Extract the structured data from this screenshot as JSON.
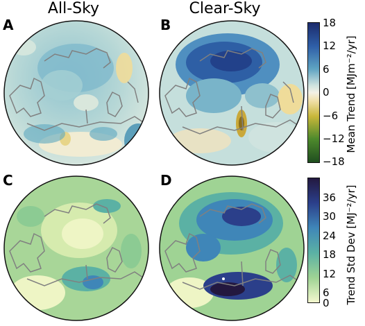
{
  "columns": {
    "left_title": "All-Sky",
    "right_title": "Clear-Sky"
  },
  "panels": [
    {
      "letter": "A",
      "row": "top",
      "column": "left"
    },
    {
      "letter": "B",
      "row": "top",
      "column": "right"
    },
    {
      "letter": "C",
      "row": "bottom",
      "column": "left"
    },
    {
      "letter": "D",
      "row": "bottom",
      "column": "right"
    }
  ],
  "colorbars": {
    "mean_trend": {
      "label": "Mean Trend [MJm⁻²/yr]",
      "ticks": [
        "18",
        "12",
        "6",
        "0",
        "−6",
        "−12",
        "−18"
      ],
      "range": [
        -18,
        18
      ],
      "colors": {
        "max": "#1b2a6b",
        "high": "#2f5fa8",
        "mid_high": "#5ea3c2",
        "near_zero_pos": "#cfe3df",
        "zero": "#f3f1e6",
        "near_zero_neg": "#f0e0a8",
        "mid_low": "#c8b73a",
        "low": "#4e8a2c",
        "min": "#1f4d1f"
      }
    },
    "std_dev": {
      "label": "Trend Std Dev [MJ⁻²/yr]",
      "ticks": [
        "36",
        "30",
        "24",
        "18",
        "12",
        "6",
        "0"
      ],
      "range": [
        0,
        39
      ],
      "colors": {
        "max": "#23183f",
        "high": "#2b3f8a",
        "mid": "#3f86b8",
        "low_mid": "#5bb1a4",
        "low": "#9fd394",
        "min": "#f5f8cf"
      }
    }
  },
  "map_style": {
    "coastline_color": "#808080",
    "border_color": "#111111"
  }
}
